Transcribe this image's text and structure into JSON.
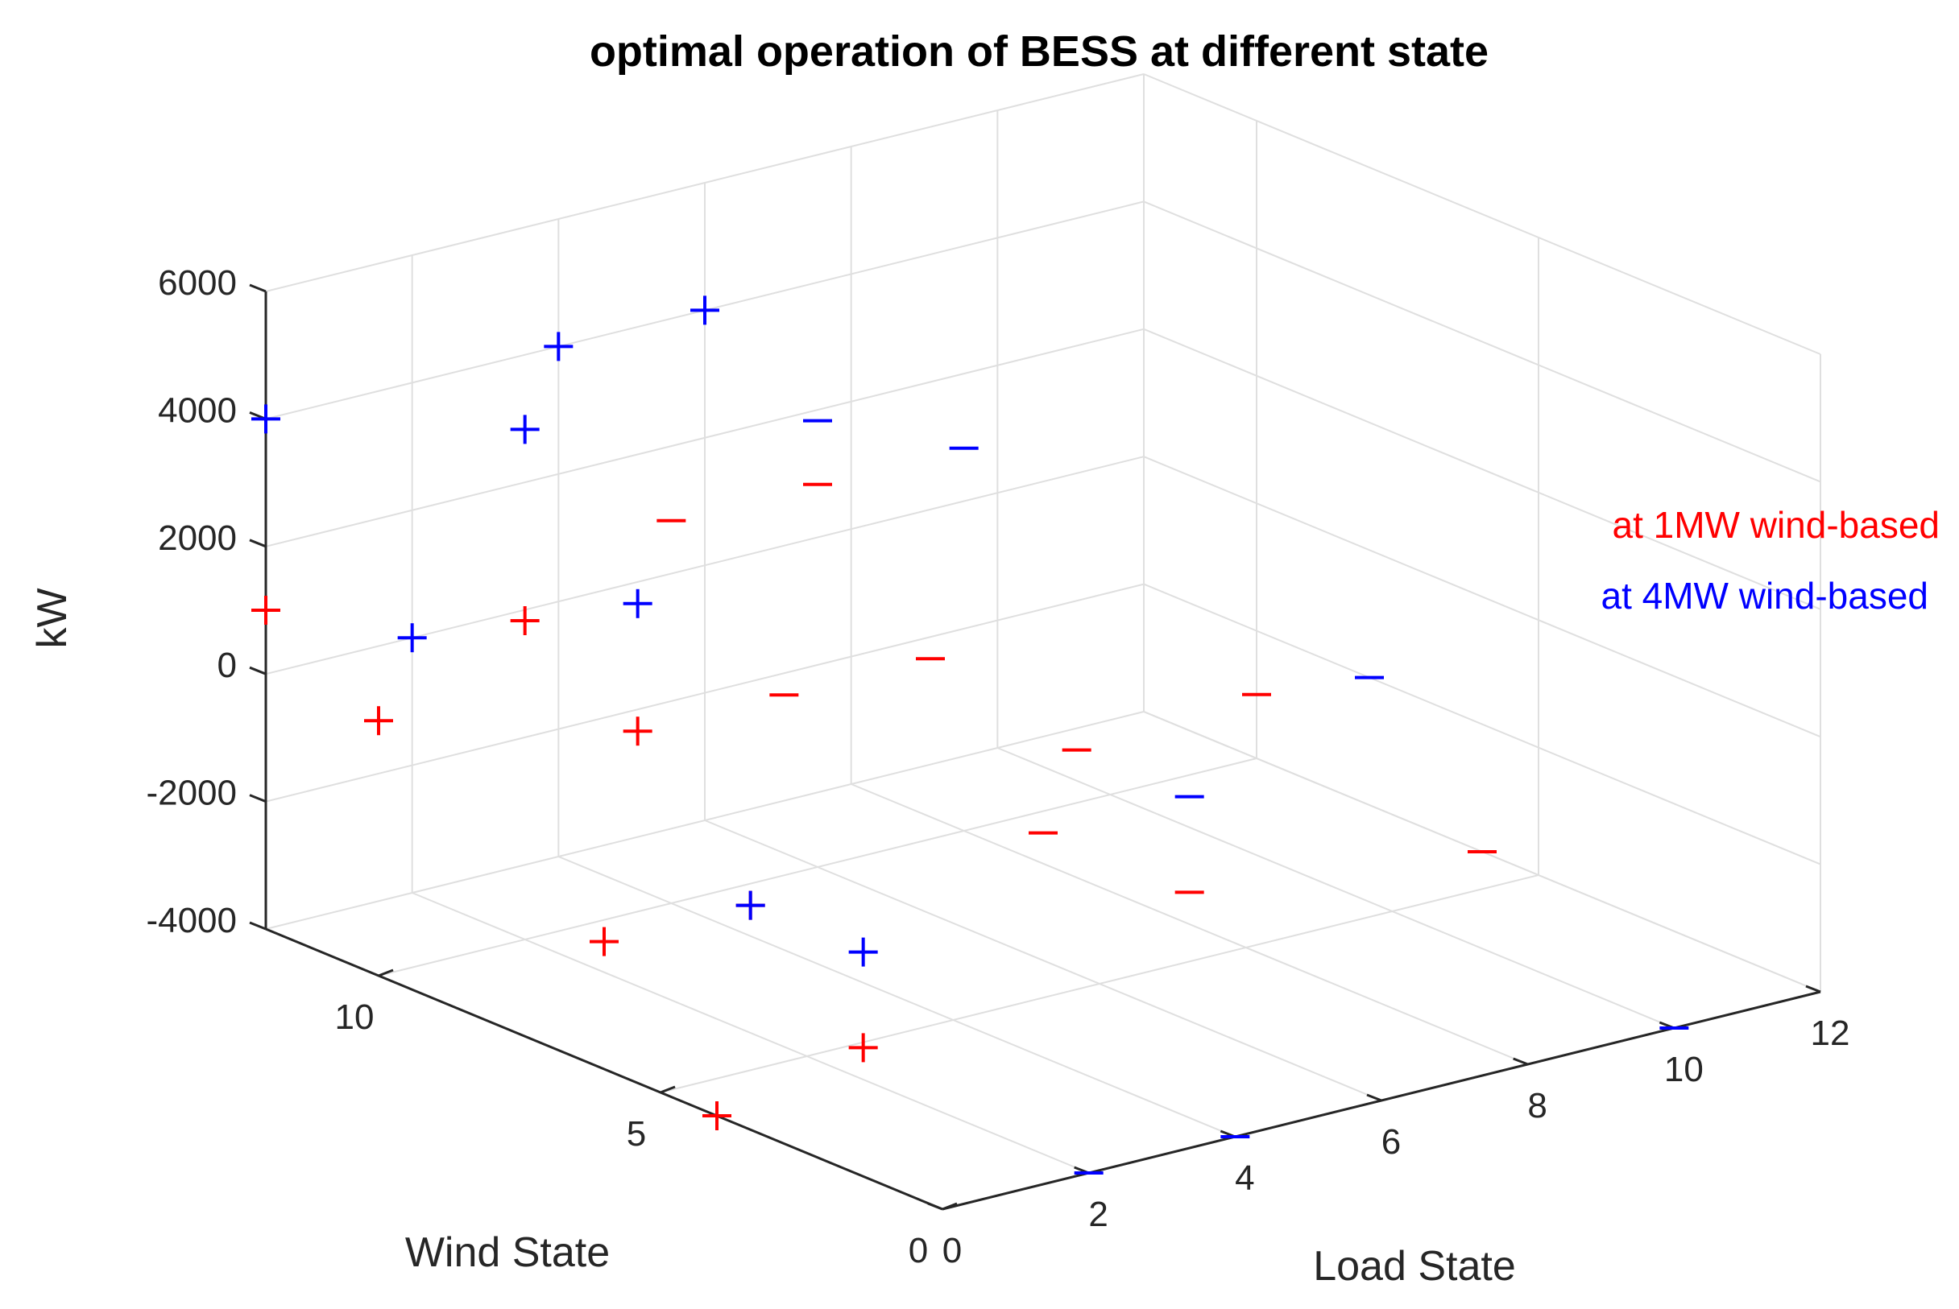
{
  "chart_data": {
    "type": "scatter3d",
    "title": "optimal operation of BESS at different state",
    "xlabel": "Load State",
    "ylabel": "Wind State",
    "zlabel": "kW",
    "xlim": [
      0,
      12
    ],
    "ylim": [
      0,
      12
    ],
    "zlim": [
      -4000,
      6000
    ],
    "xticks": [
      "0",
      "2",
      "4",
      "6",
      "8",
      "10",
      "12"
    ],
    "yticks": [
      "0",
      "5",
      "10"
    ],
    "zticks": [
      "-4000",
      "-2000",
      "0",
      "2000",
      "4000",
      "6000"
    ],
    "grid": true,
    "series": [
      {
        "name": "at 1MW wind-based",
        "color": "#ff0000",
        "points": [
          {
            "x": 0,
            "y": 12,
            "z": 1000,
            "marker": "+"
          },
          {
            "x": 0,
            "y": 10,
            "z": 0,
            "marker": "+"
          },
          {
            "x": 2,
            "y": 10,
            "z": 1000,
            "marker": "+"
          },
          {
            "x": 2,
            "y": 8,
            "z": 0,
            "marker": "+"
          },
          {
            "x": 0,
            "y": 6,
            "z": -2000,
            "marker": "+"
          },
          {
            "x": 2,
            "y": 6,
            "z": -2000,
            "marker": "+"
          },
          {
            "x": 0,
            "y": 4,
            "z": -4000,
            "marker": "+"
          },
          {
            "x": 2,
            "y": 4,
            "z": -3500,
            "marker": "+"
          },
          {
            "x": 4,
            "y": 10,
            "z": 2000,
            "marker": "-"
          },
          {
            "x": 4,
            "y": 8,
            "z": 0,
            "marker": "-"
          },
          {
            "x": 6,
            "y": 10,
            "z": 2000,
            "marker": "-"
          },
          {
            "x": 6,
            "y": 8,
            "z": 0,
            "marker": "-"
          },
          {
            "x": 6,
            "y": 6,
            "z": -2000,
            "marker": "-"
          },
          {
            "x": 8,
            "y": 8,
            "z": -2000,
            "marker": "-"
          },
          {
            "x": 8,
            "y": 6,
            "z": -3500,
            "marker": "-"
          },
          {
            "x": 12,
            "y": 10,
            "z": -3000,
            "marker": "-"
          },
          {
            "x": 12,
            "y": 6,
            "z": -4000,
            "marker": "-"
          }
        ]
      },
      {
        "name": "at 4MW wind-based",
        "color": "#0000ff",
        "points": [
          {
            "x": 0,
            "y": 12,
            "z": 4000,
            "marker": "+"
          },
          {
            "x": 2,
            "y": 10,
            "z": 4000,
            "marker": "+"
          },
          {
            "x": 2,
            "y": 12,
            "z": 0,
            "marker": "+"
          },
          {
            "x": 2,
            "y": 8,
            "z": 2000,
            "marker": "+"
          },
          {
            "x": 4,
            "y": 12,
            "z": 4000,
            "marker": "+"
          },
          {
            "x": 6,
            "y": 12,
            "z": 4000,
            "marker": "+"
          },
          {
            "x": 2,
            "y": 6,
            "z": -2000,
            "marker": "+"
          },
          {
            "x": 2,
            "y": 4,
            "z": -2000,
            "marker": "+"
          },
          {
            "x": 6,
            "y": 10,
            "z": 3000,
            "marker": "-"
          },
          {
            "x": 8,
            "y": 10,
            "z": 2000,
            "marker": "-"
          },
          {
            "x": 8,
            "y": 6,
            "z": -2000,
            "marker": "-"
          },
          {
            "x": 12,
            "y": 8,
            "z": -2000,
            "marker": "-"
          },
          {
            "x": 2,
            "y": 0,
            "z": -4000,
            "marker": "-"
          },
          {
            "x": 4,
            "y": 0,
            "z": -4000,
            "marker": "-"
          },
          {
            "x": 10,
            "y": 0,
            "z": -4000,
            "marker": "-"
          }
        ]
      }
    ],
    "legend": [
      "at 1MW wind-based",
      "at 4MW wind-based"
    ],
    "legend_position": "right"
  }
}
